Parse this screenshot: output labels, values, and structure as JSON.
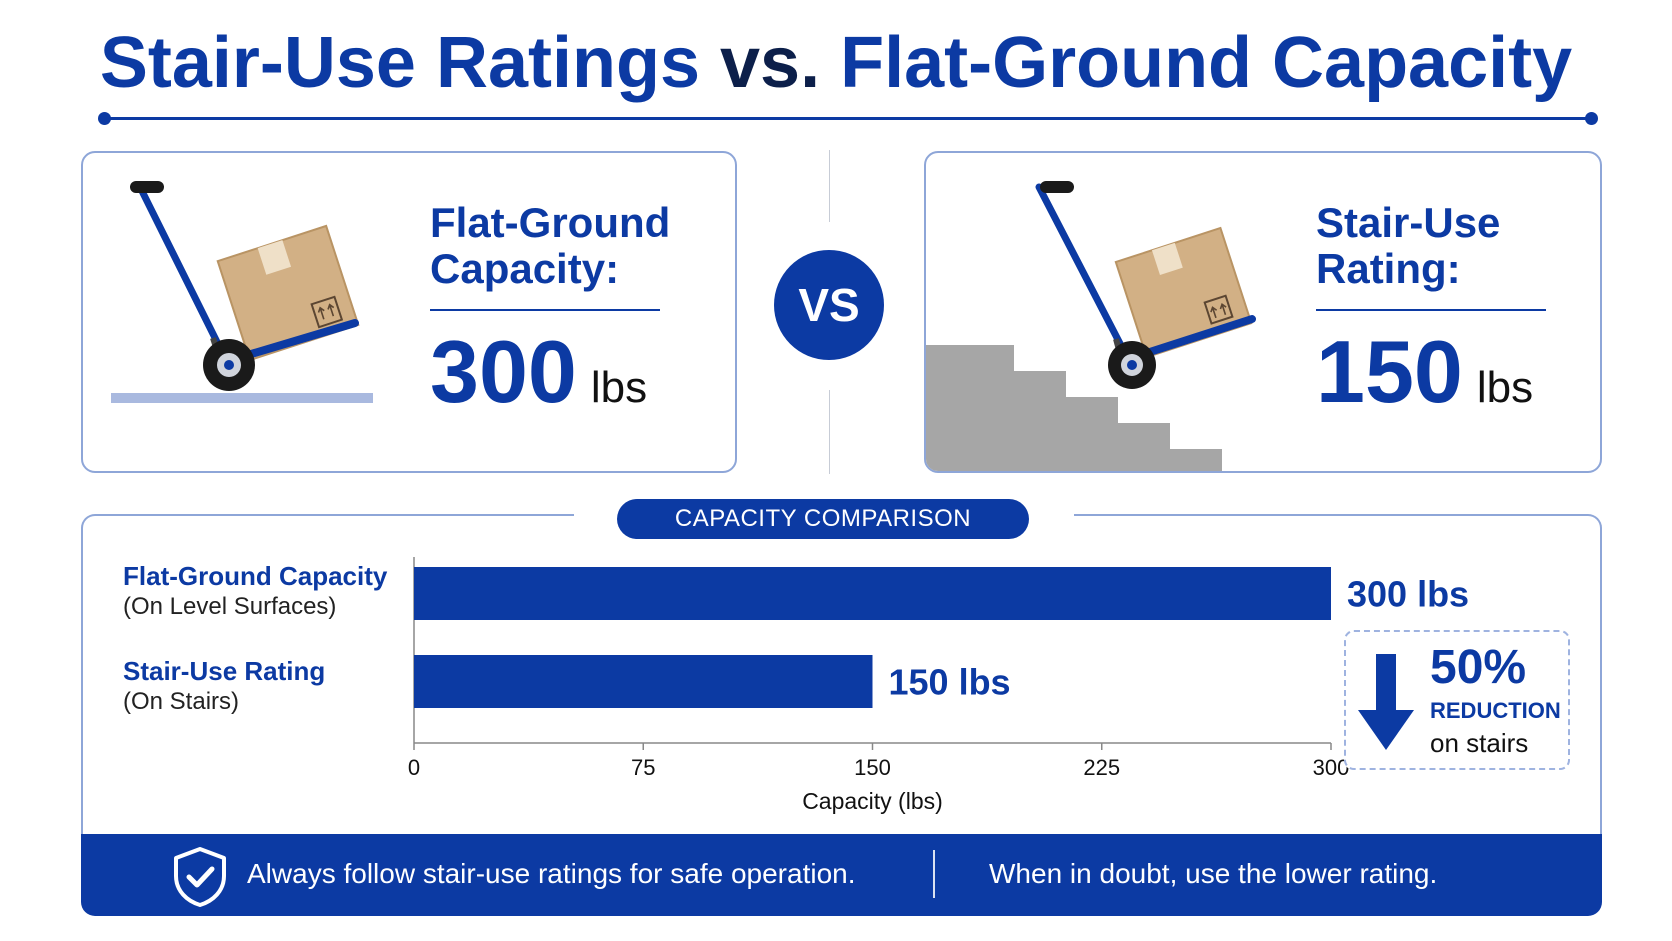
{
  "title": {
    "part1": "Stair-Use Ratings ",
    "vs": "vs.",
    "part2": " Flat-Ground Capacity"
  },
  "left_card": {
    "label_line1": "Flat-Ground",
    "label_line2": "Capacity:",
    "value": "300",
    "unit": "lbs"
  },
  "vs_badge": "VS",
  "right_card": {
    "label_line1": "Stair-Use",
    "label_line2": "Rating:",
    "value": "150",
    "unit": "lbs"
  },
  "comparison_pill": "CAPACITY COMPARISON",
  "categories_text": [
    {
      "name": "Flat-Ground Capacity",
      "sub": "(On Level Surfaces)"
    },
    {
      "name": "Stair-Use Rating",
      "sub": "(On Stairs)"
    }
  ],
  "reduction": {
    "percent": "50%",
    "word": "REDUCTION",
    "note": "on stairs"
  },
  "footer": {
    "message_left": "Always follow stair-use ratings for safe operation.",
    "message_right": "When in doubt, use the lower rating."
  },
  "colors": {
    "primary": "#0c3aa3",
    "box": "#d2b085",
    "stairs": "#a6a6a6",
    "ground": "#a9b9df"
  },
  "chart_data": {
    "type": "bar",
    "orientation": "horizontal",
    "categories": [
      "Flat-Ground Capacity",
      "Stair-Use Rating"
    ],
    "values": [
      300,
      150
    ],
    "value_labels": [
      "300 lbs",
      "150 lbs"
    ],
    "xlabel": "Capacity (lbs)",
    "xlim": [
      0,
      300
    ],
    "xticks": [
      0,
      75,
      150,
      225,
      300
    ],
    "grid": false,
    "bar_color": "#0c3aa3"
  }
}
